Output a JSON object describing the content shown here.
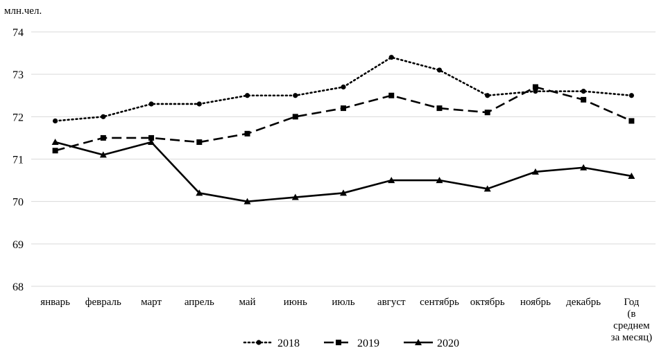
{
  "chart_data": {
    "type": "line",
    "unit_label": "млн.чел.",
    "categories": [
      "январь",
      "февраль",
      "март",
      "апрель",
      "май",
      "июнь",
      "июль",
      "август",
      "сентябрь",
      "октябрь",
      "ноябрь",
      "декабрь",
      "Год (в среднем за месяц)"
    ],
    "category_lines": [
      [
        "январь"
      ],
      [
        "февраль"
      ],
      [
        "март"
      ],
      [
        "апрель"
      ],
      [
        "май"
      ],
      [
        "июнь"
      ],
      [
        "июль"
      ],
      [
        "август"
      ],
      [
        "сентябрь"
      ],
      [
        "октябрь"
      ],
      [
        "ноябрь"
      ],
      [
        "декабрь"
      ],
      [
        "Год",
        "(в",
        "среднем",
        "за месяц)"
      ]
    ],
    "ylim": [
      68,
      74
    ],
    "yticks": [
      68,
      69,
      70,
      71,
      72,
      73,
      74
    ],
    "grid": true,
    "legend_position": "bottom-center",
    "series": [
      {
        "name": "2018",
        "style": "dotted",
        "marker": "circle",
        "color": "#000000",
        "values": [
          71.9,
          72.0,
          72.3,
          72.3,
          72.5,
          72.5,
          72.7,
          73.4,
          73.1,
          72.5,
          72.6,
          72.6,
          72.5
        ]
      },
      {
        "name": "2019",
        "style": "dashed",
        "marker": "square",
        "color": "#000000",
        "values": [
          71.2,
          71.5,
          71.5,
          71.4,
          71.6,
          72.0,
          72.2,
          72.5,
          72.2,
          72.1,
          72.7,
          72.4,
          71.9
        ]
      },
      {
        "name": "2020",
        "style": "solid",
        "marker": "triangle",
        "color": "#000000",
        "values": [
          71.4,
          71.1,
          71.4,
          70.2,
          70.0,
          70.1,
          70.2,
          70.5,
          70.5,
          70.3,
          70.7,
          70.8,
          70.6
        ]
      }
    ]
  }
}
